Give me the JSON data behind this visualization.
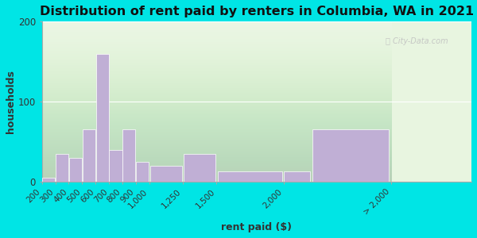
{
  "title": "Distribution of rent paid by renters in Columbia, WA in 2021",
  "xlabel": "rent paid ($)",
  "ylabel": "households",
  "bar_left_edges": [
    200,
    300,
    400,
    500,
    600,
    700,
    800,
    900,
    1000,
    1250,
    1500,
    2000,
    2200
  ],
  "bar_widths": [
    100,
    100,
    100,
    100,
    100,
    100,
    100,
    100,
    250,
    250,
    500,
    200,
    600
  ],
  "values": [
    5,
    35,
    30,
    65,
    160,
    40,
    65,
    25,
    20,
    35,
    13,
    13,
    65
  ],
  "tick_positions": [
    200,
    300,
    400,
    500,
    600,
    700,
    800,
    900,
    1000,
    1250,
    1500,
    2000,
    2800
  ],
  "tick_labels": [
    "200",
    "300",
    "400",
    "500",
    "600",
    "700",
    "800",
    "900",
    "1,000",
    "1,250",
    "1,500",
    "2,000",
    "> 2,000"
  ],
  "bar_color": "#c0afd5",
  "background_outer": "#00e5e5",
  "background_inner": "#e8f5e0",
  "ylim": [
    0,
    200
  ],
  "yticks": [
    0,
    100,
    200
  ],
  "title_fontsize": 11.5,
  "axis_label_fontsize": 9,
  "tick_fontsize": 7.5,
  "watermark": "City-Data.com"
}
